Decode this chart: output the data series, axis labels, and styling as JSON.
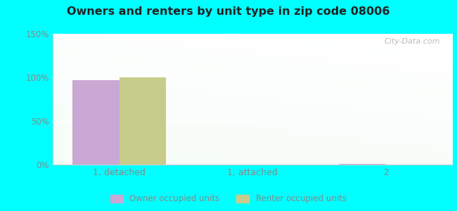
{
  "title": "Owners and renters by unit type in zip code 08006",
  "categories": [
    "1, detached",
    "1, attached",
    "2"
  ],
  "owner_values": [
    97,
    0,
    0.5
  ],
  "renter_values": [
    100,
    0,
    0
  ],
  "owner_color": "#c9a8d4",
  "renter_color": "#c8cc8a",
  "ylim": [
    0,
    150
  ],
  "yticks": [
    0,
    50,
    100,
    150
  ],
  "ytick_labels": [
    "0%",
    "50%",
    "100%",
    "150%"
  ],
  "bg_top_color": "#e0f5e0",
  "bg_bottom_color": "#d8f0d8",
  "outer_background": "#00ffff",
  "bar_width": 0.35,
  "legend_owner": "Owner occupied units",
  "legend_renter": "Renter occupied units",
  "watermark": "City-Data.com",
  "grid_color": "#c8e8c8",
  "tick_color": "#888888",
  "spine_color": "#cccccc"
}
